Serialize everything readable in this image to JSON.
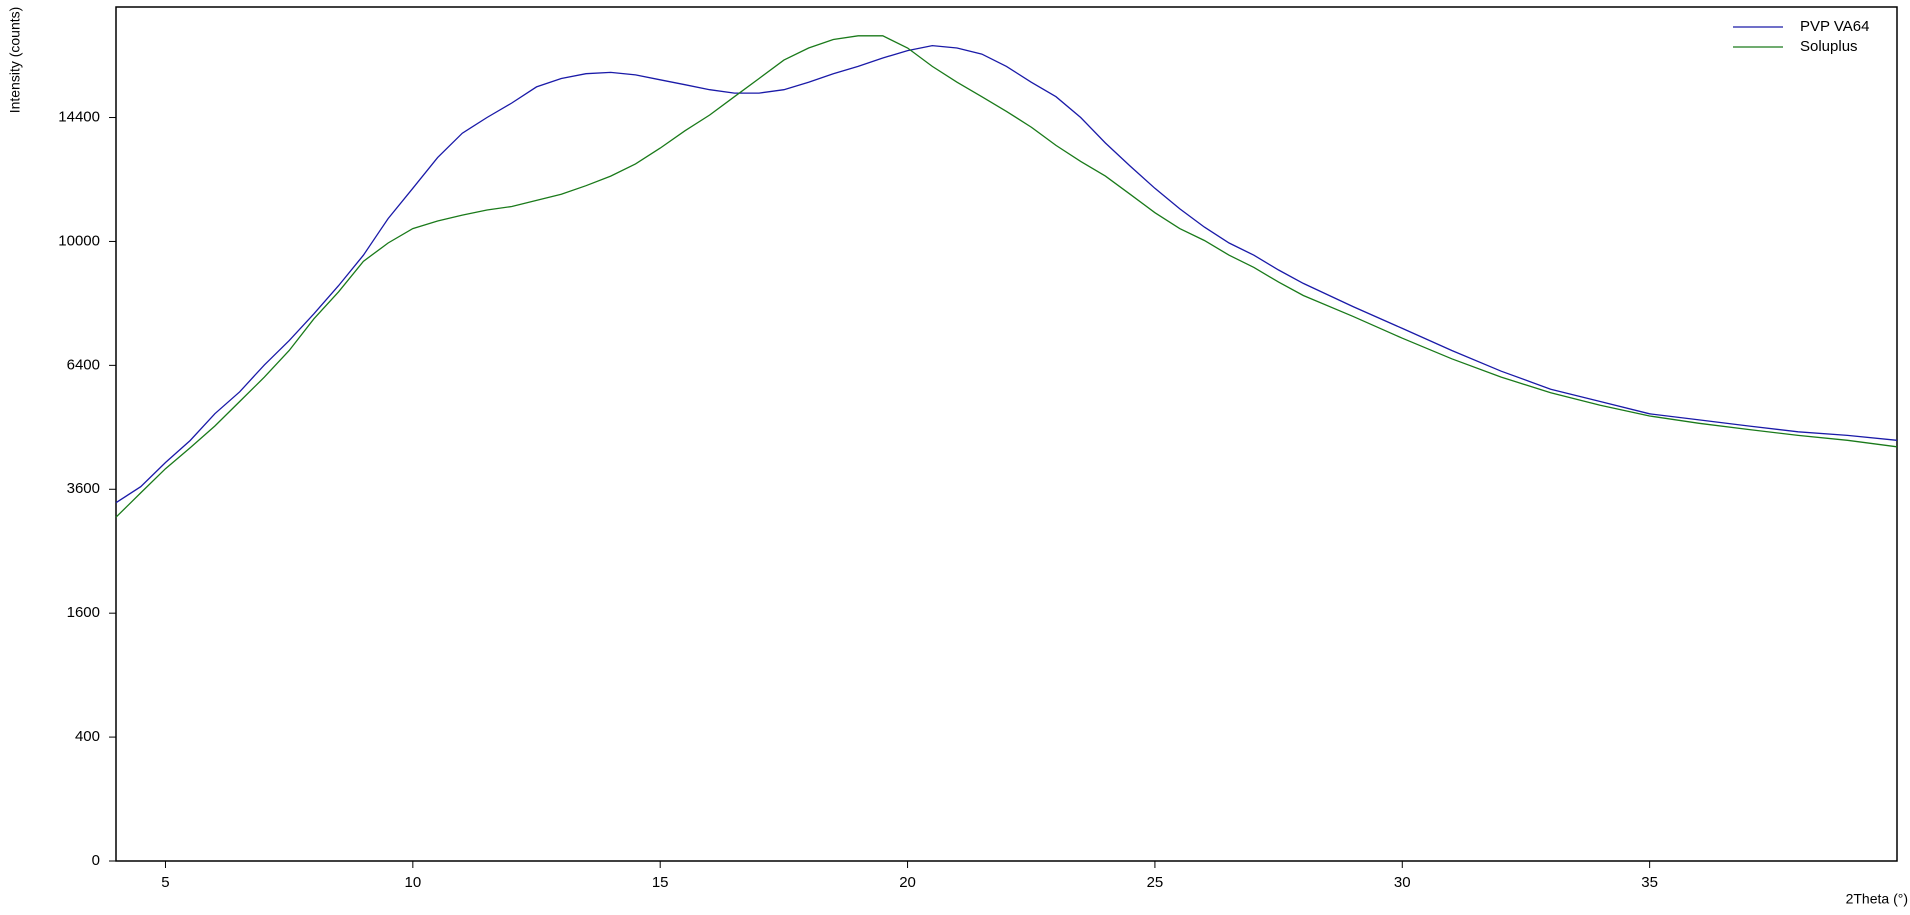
{
  "chart_data": {
    "type": "line",
    "y_label": "Intensity (counts)",
    "x_label": "2Theta (°)",
    "y_scale": "sqrt",
    "legend": "top-right",
    "x": [
      4,
      4.5,
      5,
      5.5,
      6,
      6.5,
      7,
      7.5,
      8,
      8.5,
      9,
      9.5,
      10,
      10.5,
      11,
      11.5,
      12,
      12.5,
      13,
      13.5,
      14,
      14.5,
      15,
      15.5,
      16,
      16.5,
      17,
      17.5,
      18,
      18.5,
      19,
      19.5,
      20,
      20.5,
      21,
      21.5,
      22,
      22.5,
      23,
      23.5,
      24,
      24.5,
      25,
      25.5,
      26,
      26.5,
      27,
      27.5,
      28,
      29,
      30,
      31,
      32,
      33,
      34,
      35,
      36,
      37,
      38,
      39,
      40
    ],
    "series": [
      {
        "name": "PVP VA64",
        "color": "#1a1aa8",
        "values": [
          3345,
          3650,
          4137,
          4606,
          5213,
          5735,
          6412,
          7056,
          7800,
          8624,
          9560,
          10750,
          11790,
          12890,
          13800,
          14400,
          14970,
          15610,
          15950,
          16150,
          16200,
          16100,
          15900,
          15700,
          15500,
          15360,
          15360,
          15500,
          15800,
          16150,
          16450,
          16800,
          17110,
          17320,
          17220,
          16960,
          16450,
          15800,
          15220,
          14400,
          13430,
          12580,
          11790,
          11080,
          10470,
          9950,
          9560,
          9100,
          8690,
          8010,
          7390,
          6790,
          6250,
          5800,
          5500,
          5210,
          5070,
          4930,
          4800,
          4720,
          4610
        ]
      },
      {
        "name": "Soluplus",
        "color": "#1a7a1a",
        "values": [
          3080,
          3530,
          4010,
          4450,
          4930,
          5500,
          6100,
          6790,
          7660,
          8440,
          9370,
          9950,
          10420,
          10670,
          10870,
          11040,
          11160,
          11370,
          11580,
          11880,
          12220,
          12660,
          13240,
          13890,
          14500,
          15220,
          15950,
          16710,
          17220,
          17580,
          17740,
          17740,
          17220,
          16450,
          15800,
          15220,
          14640,
          14030,
          13340,
          12750,
          12220,
          11580,
          10950,
          10420,
          10030,
          9560,
          9180,
          8730,
          8330,
          7730,
          7120,
          6570,
          6100,
          5710,
          5410,
          5160,
          4990,
          4850,
          4720,
          4610,
          4470
        ]
      }
    ],
    "xlim": [
      4,
      40
    ],
    "xticks": [
      5,
      10,
      15,
      20,
      25,
      30,
      35
    ],
    "ylim": [
      0,
      19000
    ],
    "yticks": [
      0,
      400,
      1600,
      3600,
      6400,
      10000,
      14400
    ]
  }
}
